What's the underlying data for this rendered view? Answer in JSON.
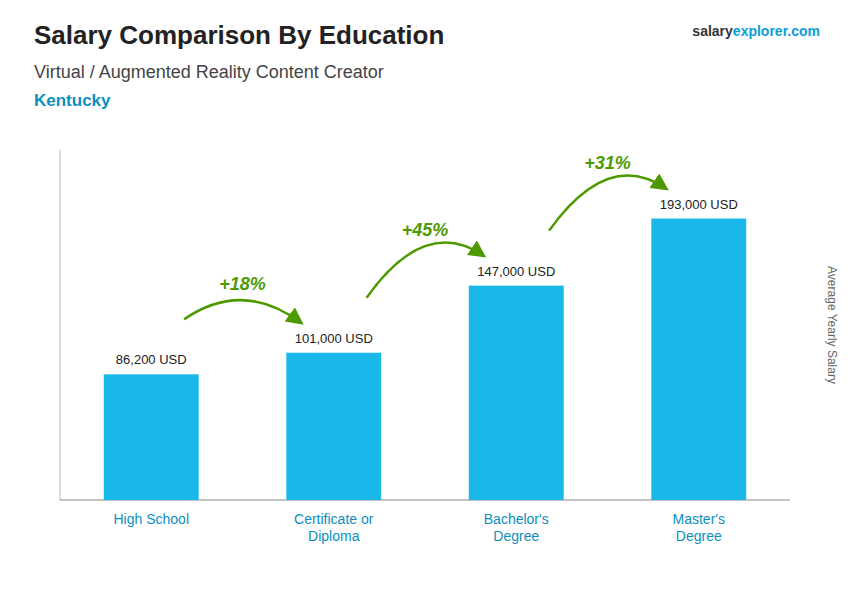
{
  "chart_data": {
    "type": "bar",
    "title": "Salary Comparison By Education",
    "subtitle": "Virtual / Augmented Reality Content Creator",
    "location": "Kentucky",
    "brand": [
      "salary",
      "explorer.com"
    ],
    "ylabel": "Average Yearly Salary",
    "categories": [
      "High School",
      "Certificate or\nDiploma",
      "Bachelor's\nDegree",
      "Master's\nDegree"
    ],
    "values": [
      86200,
      101000,
      147000,
      193000
    ],
    "value_labels": [
      "86,200 USD",
      "101,000 USD",
      "147,000 USD",
      "193,000 USD"
    ],
    "pct_labels": [
      "+18%",
      "+45%",
      "+31%"
    ],
    "color": "#1ab8e8",
    "ylim": [
      0,
      240000
    ],
    "data_labels": true,
    "tick_labels": false,
    "grid": false
  }
}
